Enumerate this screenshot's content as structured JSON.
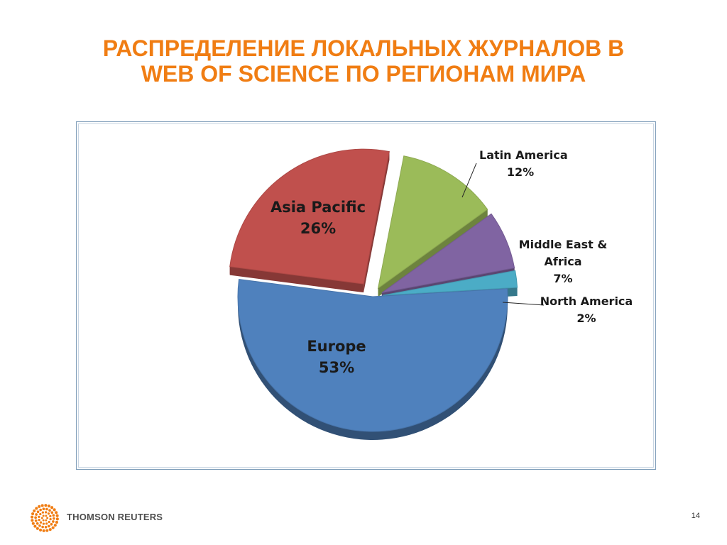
{
  "slide": {
    "title_line1": "РАСПРЕДЕЛЕНИЕ ЛОКАЛЬНЫХ ЖУРНАЛОВ В",
    "title_line2": "WEB OF SCIENCE ПО РЕГИОНАМ МИРА",
    "title_color": "#f07d13"
  },
  "chart_data": {
    "type": "pie",
    "title": "",
    "slices": [
      {
        "label": "Latin America",
        "value": 12,
        "value_label": "12%",
        "color": "#9bbb59"
      },
      {
        "label": "Middle East & Africa",
        "value": 7,
        "value_label": "7%",
        "color": "#8064a2"
      },
      {
        "label": "North America",
        "value": 2,
        "value_label": "2%",
        "color": "#4bacc6"
      },
      {
        "label": "Europe",
        "value": 53,
        "value_label": "53%",
        "color": "#4f81bd"
      },
      {
        "label": "Asia Pacific",
        "value": 26,
        "value_label": "26%",
        "color": "#c0504d"
      }
    ],
    "style": "3d-exploded"
  },
  "footer": {
    "brand": "THOMSON REUTERS",
    "brand_color": "#f07d13",
    "logo_icon": "thomson-reuters-logo-icon",
    "page_number": "14"
  }
}
